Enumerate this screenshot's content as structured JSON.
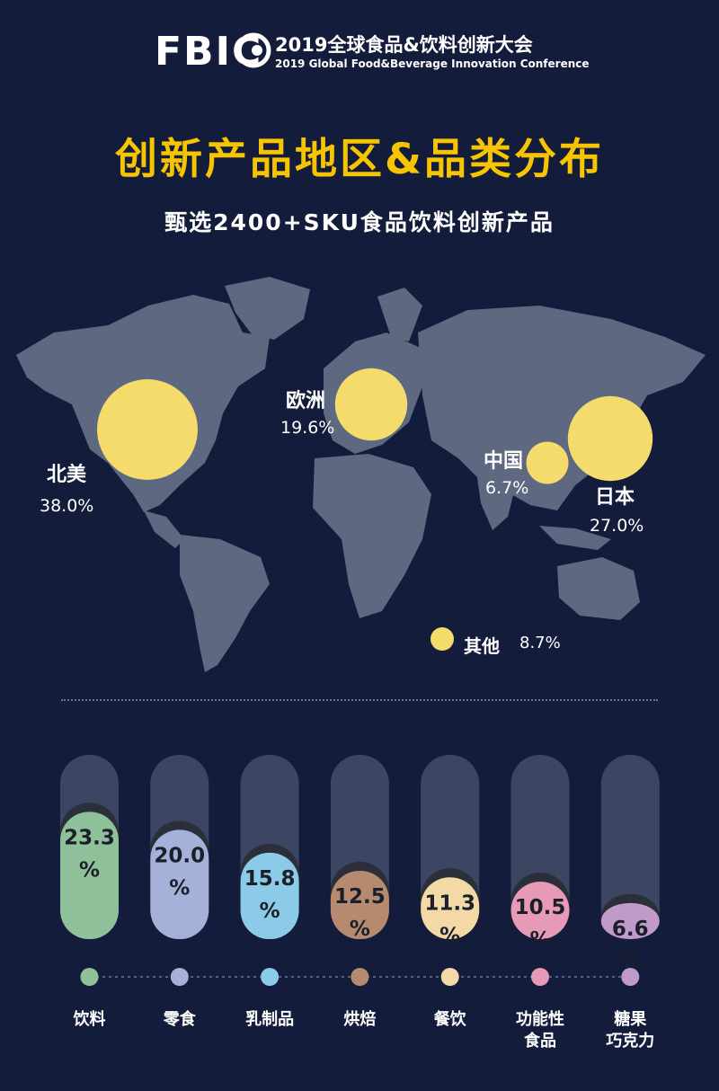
{
  "header": {
    "logo_text": "FBIC",
    "conference_cn": "2019全球食品&饮料创新大会",
    "conference_en": "2019 Global Food&Beverage Innovation Conference"
  },
  "title": "创新产品地区&品类分布",
  "subtitle": "甄选2400+SKU食品饮料创新产品",
  "colors": {
    "background": "#141c3c",
    "title": "#f6c400",
    "bubble": "#f5da6c",
    "map_land": "#5e6880",
    "bar_track": "#3c4662"
  },
  "regions": [
    {
      "name": "北美",
      "pct": "38.0%",
      "value": 38.0
    },
    {
      "name": "欧洲",
      "pct": "19.6%",
      "value": 19.6
    },
    {
      "name": "中国",
      "pct": "6.7%",
      "value": 6.7
    },
    {
      "name": "日本",
      "pct": "27.0%",
      "value": 27.0
    },
    {
      "name": "其他",
      "pct": "8.7%",
      "value": 8.7
    }
  ],
  "chart_data": {
    "type": "bar",
    "categories": [
      "饮料",
      "零食",
      "乳制品",
      "烘焙",
      "餐饮",
      "功能性食品",
      "糖果巧克力"
    ],
    "values": [
      23.3,
      20.0,
      15.8,
      12.5,
      11.3,
      10.5,
      6.6
    ],
    "value_labels": [
      "23.3",
      "20.0",
      "15.8",
      "12.5",
      "11.3",
      "10.5",
      "6.6"
    ],
    "unit": "%",
    "colors": [
      "#8ec19a",
      "#a5b1d8",
      "#8ccbe8",
      "#b58a6e",
      "#f2d9a6",
      "#e79ab8",
      "#c09ac8"
    ],
    "category_lines": [
      [
        "饮料"
      ],
      [
        "零食"
      ],
      [
        "乳制品"
      ],
      [
        "烘焙"
      ],
      [
        "餐饮"
      ],
      [
        "功能性",
        "食品"
      ],
      [
        "糖果",
        "巧克力"
      ]
    ]
  }
}
